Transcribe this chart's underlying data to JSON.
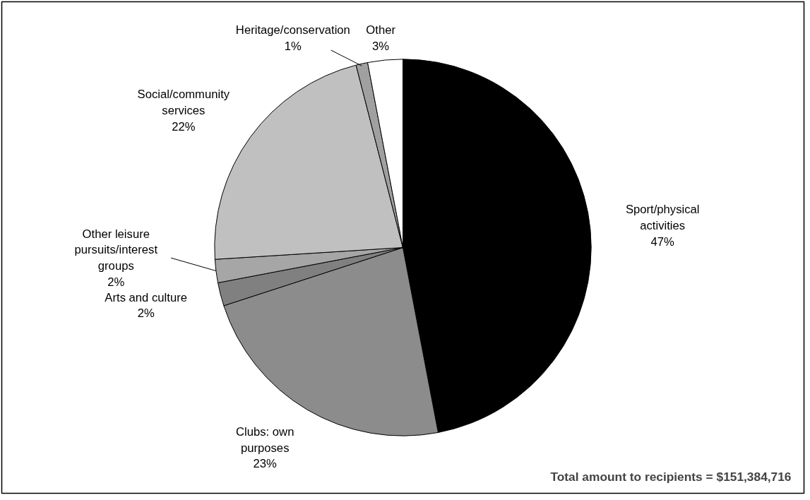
{
  "chart_data": {
    "type": "pie",
    "categories": [
      "Sport/physical activities",
      "Clubs: own purposes",
      "Arts and culture",
      "Other leisure pursuits/interest groups",
      "Social/community services",
      "Heritage/conservation",
      "Other"
    ],
    "values": [
      47,
      23,
      2,
      2,
      22,
      1,
      3
    ],
    "value_labels": [
      "47%",
      "23%",
      "2%",
      "2%",
      "22%",
      "1%",
      "3%"
    ],
    "colors": [
      "#000000",
      "#8c8c8c",
      "#808080",
      "#a6a6a6",
      "#c0c0c0",
      "#a0a0a0",
      "#ffffff"
    ],
    "annotations": [
      "Total amount to recipients = $151,384,716"
    ],
    "legend": false
  }
}
